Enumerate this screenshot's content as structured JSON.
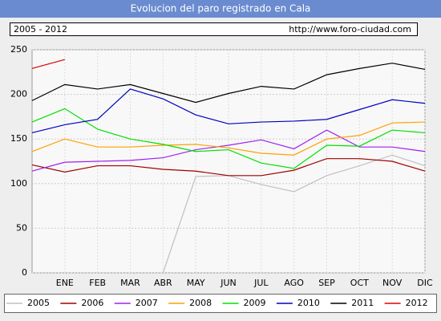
{
  "chart_data": {
    "type": "line",
    "title": "Evolucion del paro registrado en Cala",
    "subtitle": "2005 - 2012",
    "source": "http://www.foro-ciudad.com",
    "categories": [
      null,
      "ENE",
      "FEB",
      "MAR",
      "ABR",
      "MAY",
      "JUN",
      "JUL",
      "AGO",
      "SEP",
      "OCT",
      "NOV",
      "DIC"
    ],
    "ylim": [
      0,
      250
    ],
    "yticks": [
      0,
      50,
      100,
      150,
      200,
      250
    ],
    "grid": true,
    "series": [
      {
        "name": "2005",
        "color": "#c0c0c0",
        "values": [
          null,
          null,
          null,
          null,
          0,
          108,
          109,
          99,
          91,
          109,
          120,
          132,
          120
        ]
      },
      {
        "name": "2006",
        "color": "#a00000",
        "values": [
          121,
          113,
          120,
          120,
          116,
          114,
          109,
          109,
          115,
          128,
          128,
          125,
          114
        ]
      },
      {
        "name": "2007",
        "color": "#a020f0",
        "values": [
          114,
          124,
          125,
          126,
          129,
          138,
          143,
          149,
          139,
          160,
          141,
          141,
          136
        ]
      },
      {
        "name": "2008",
        "color": "#ffa000",
        "values": [
          136,
          150,
          141,
          141,
          143,
          144,
          140,
          134,
          132,
          150,
          154,
          168,
          169
        ]
      },
      {
        "name": "2009",
        "color": "#00e000",
        "values": [
          169,
          184,
          161,
          150,
          144,
          136,
          138,
          123,
          117,
          143,
          142,
          160,
          157
        ]
      },
      {
        "name": "2010",
        "color": "#0000c0",
        "values": [
          157,
          166,
          172,
          206,
          195,
          177,
          167,
          169,
          170,
          172,
          183,
          194,
          190
        ]
      },
      {
        "name": "2011",
        "color": "#000000",
        "values": [
          193,
          211,
          206,
          211,
          201,
          191,
          201,
          209,
          206,
          222,
          229,
          235,
          228
        ]
      },
      {
        "name": "2012",
        "color": "#e00000",
        "values": [
          229,
          239,
          null,
          null,
          null,
          null,
          null,
          null,
          null,
          null,
          null,
          null,
          null
        ]
      }
    ]
  }
}
